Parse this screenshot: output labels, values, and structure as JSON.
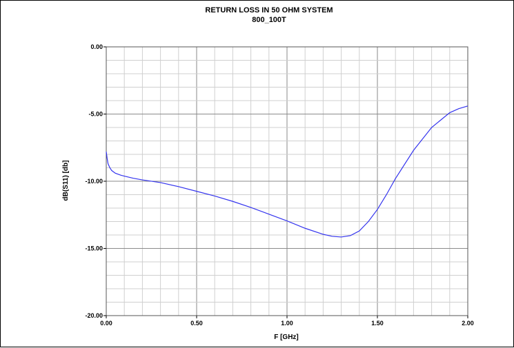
{
  "chart_data": {
    "type": "line",
    "title": "RETURN LOSS IN 50 OHM SYSTEM",
    "subtitle": "800_100T",
    "xlabel": "F [GHz]",
    "ylabel": "dB(S11) [db]",
    "xlim": [
      0,
      2
    ],
    "ylim": [
      -20,
      0
    ],
    "xticks": [
      0,
      0.5,
      1,
      1.5,
      2
    ],
    "xtick_labels": [
      "0.00",
      "0.50",
      "1.00",
      "1.50",
      "2.00"
    ],
    "yticks": [
      0,
      -5,
      -10,
      -15,
      -20
    ],
    "ytick_labels": [
      "0.00",
      "-5.00",
      "-10.00",
      "-15.00",
      "-20.00"
    ],
    "grid": true,
    "line_color": "#3333ee",
    "series": [
      {
        "x": [
          0.0,
          0.005,
          0.01,
          0.02,
          0.03,
          0.05,
          0.08,
          0.1,
          0.15,
          0.2,
          0.3,
          0.4,
          0.5,
          0.6,
          0.7,
          0.8,
          0.9,
          1.0,
          1.1,
          1.2,
          1.25,
          1.3,
          1.35,
          1.4,
          1.45,
          1.5,
          1.55,
          1.6,
          1.7,
          1.8,
          1.9,
          1.95,
          2.0
        ],
        "y": [
          -7.8,
          -8.3,
          -8.7,
          -9.0,
          -9.2,
          -9.4,
          -9.55,
          -9.62,
          -9.78,
          -9.9,
          -10.1,
          -10.4,
          -10.75,
          -11.1,
          -11.5,
          -11.95,
          -12.45,
          -12.95,
          -13.5,
          -13.95,
          -14.1,
          -14.15,
          -14.05,
          -13.7,
          -13.0,
          -12.1,
          -11.0,
          -9.8,
          -7.7,
          -6.0,
          -4.9,
          -4.6,
          -4.4
        ]
      }
    ]
  }
}
